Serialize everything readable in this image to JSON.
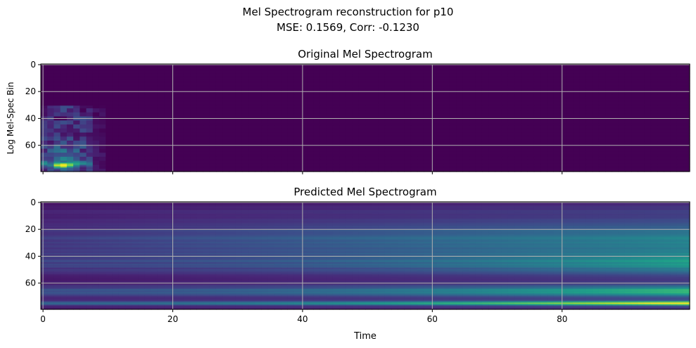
{
  "figure": {
    "title_line1": "Mel Spectrogram reconstruction for p10",
    "title_line2": "MSE: 0.1569, Corr: -0.1230",
    "colormap": "viridis"
  },
  "chart_data": [
    {
      "type": "heatmap",
      "title": "Original Mel Spectrogram",
      "xlabel": "",
      "ylabel": "Log Mel-Spec Bin",
      "xlim": [
        0,
        99
      ],
      "ylim": [
        0,
        79
      ],
      "y_inverted": true,
      "xticks": [
        "0",
        "20",
        "40",
        "60",
        "80"
      ],
      "xticklabels_visible": false,
      "yticks": [
        "0",
        "20",
        "40",
        "60"
      ],
      "grid": true,
      "description_values": "Energy concentrated in time frames 0-8, bins ~30-78, peak near frame 3 bin 75; remainder near zero",
      "peak": {
        "x": 3,
        "y": 75
      }
    },
    {
      "type": "heatmap",
      "title": "Predicted Mel Spectrogram",
      "xlabel": "Time",
      "ylabel": "",
      "xlim": [
        0,
        99
      ],
      "ylim": [
        0,
        79
      ],
      "y_inverted": true,
      "xticks": [
        "0",
        "20",
        "40",
        "60",
        "80"
      ],
      "yticks": [
        "0",
        "20",
        "40",
        "60"
      ],
      "grid": true,
      "peak": {
        "x": 95,
        "y": 75
      }
    }
  ]
}
